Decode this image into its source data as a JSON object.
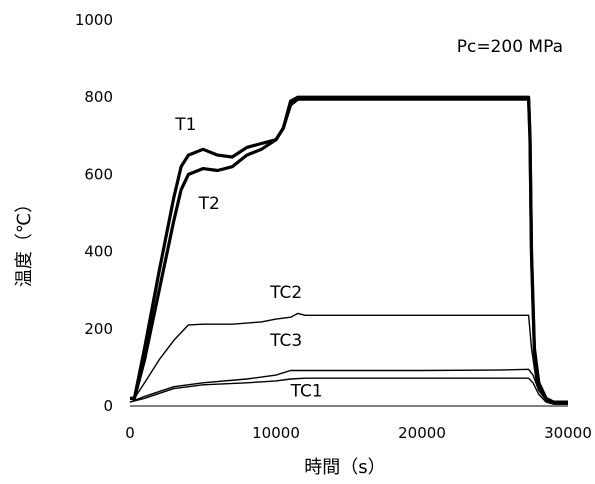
{
  "chart_data": {
    "type": "line",
    "title": "",
    "annotation": "Pc=200 MPa",
    "xlabel": "時間（s）",
    "ylabel": "温度（℃）",
    "xlim": [
      0,
      30000
    ],
    "ylim": [
      0,
      1000
    ],
    "xticks": [
      "0",
      "10000",
      "20000",
      "30000"
    ],
    "yticks": [
      "0",
      "200",
      "400",
      "600",
      "800",
      "1000"
    ],
    "grid": false,
    "legend": "none",
    "series": [
      {
        "name": "T1",
        "thick": true,
        "x": [
          0,
          300,
          1000,
          2000,
          3000,
          3500,
          4000,
          5000,
          6000,
          7000,
          8000,
          9000,
          10000,
          10500,
          11000,
          11500,
          12000,
          15000,
          20000,
          25000,
          27300,
          27400,
          27500,
          27700,
          28000,
          28500,
          29000,
          30000
        ],
        "y": [
          20,
          20,
          150,
          350,
          540,
          620,
          650,
          665,
          650,
          645,
          670,
          680,
          690,
          720,
          790,
          800,
          800,
          800,
          800,
          800,
          800,
          700,
          400,
          150,
          60,
          20,
          10,
          10
        ]
      },
      {
        "name": "T2",
        "thick": true,
        "x": [
          0,
          300,
          1000,
          2000,
          3000,
          3500,
          4000,
          5000,
          6000,
          7000,
          8000,
          9000,
          10000,
          10500,
          11000,
          11500,
          12000,
          15000,
          20000,
          25000,
          27300,
          27400,
          27500,
          27700,
          28000,
          28500,
          29000,
          30000
        ],
        "y": [
          20,
          20,
          120,
          300,
          480,
          560,
          600,
          615,
          610,
          620,
          650,
          665,
          690,
          720,
          780,
          795,
          795,
          795,
          795,
          795,
          795,
          690,
          390,
          140,
          55,
          18,
          10,
          10
        ]
      },
      {
        "name": "TC2",
        "thick": false,
        "x": [
          0,
          300,
          1000,
          2000,
          3000,
          4000,
          5000,
          7000,
          9000,
          10000,
          11000,
          11500,
          12000,
          15000,
          20000,
          25000,
          27300,
          27500,
          27800,
          28200,
          28700,
          29200,
          30000
        ],
        "y": [
          20,
          20,
          60,
          120,
          170,
          210,
          212,
          212,
          218,
          225,
          230,
          240,
          235,
          235,
          235,
          235,
          235,
          150,
          70,
          30,
          10,
          5,
          5
        ]
      },
      {
        "name": "TC3",
        "thick": false,
        "x": [
          0,
          1000,
          3000,
          5000,
          8000,
          10000,
          11000,
          12000,
          15000,
          20000,
          25000,
          27300,
          27600,
          28000,
          28500,
          29000,
          30000
        ],
        "y": [
          10,
          25,
          50,
          60,
          70,
          80,
          92,
          92,
          92,
          92,
          93,
          95,
          80,
          40,
          15,
          5,
          5
        ]
      },
      {
        "name": "TC1",
        "thick": false,
        "x": [
          0,
          1000,
          3000,
          5000,
          8000,
          10000,
          11000,
          12000,
          15000,
          20000,
          25000,
          27300,
          27600,
          28000,
          28500,
          29000,
          30000
        ],
        "y": [
          10,
          20,
          45,
          55,
          60,
          65,
          70,
          72,
          72,
          72,
          72,
          72,
          60,
          30,
          10,
          5,
          5
        ]
      }
    ],
    "labels": [
      {
        "text": "T1",
        "x": 3100,
        "y": 715
      },
      {
        "text": "T2",
        "x": 4700,
        "y": 510
      },
      {
        "text": "TC2",
        "x": 9600,
        "y": 280
      },
      {
        "text": "TC3",
        "x": 9600,
        "y": 155
      },
      {
        "text": "TC1",
        "x": 11000,
        "y": 25
      }
    ]
  }
}
